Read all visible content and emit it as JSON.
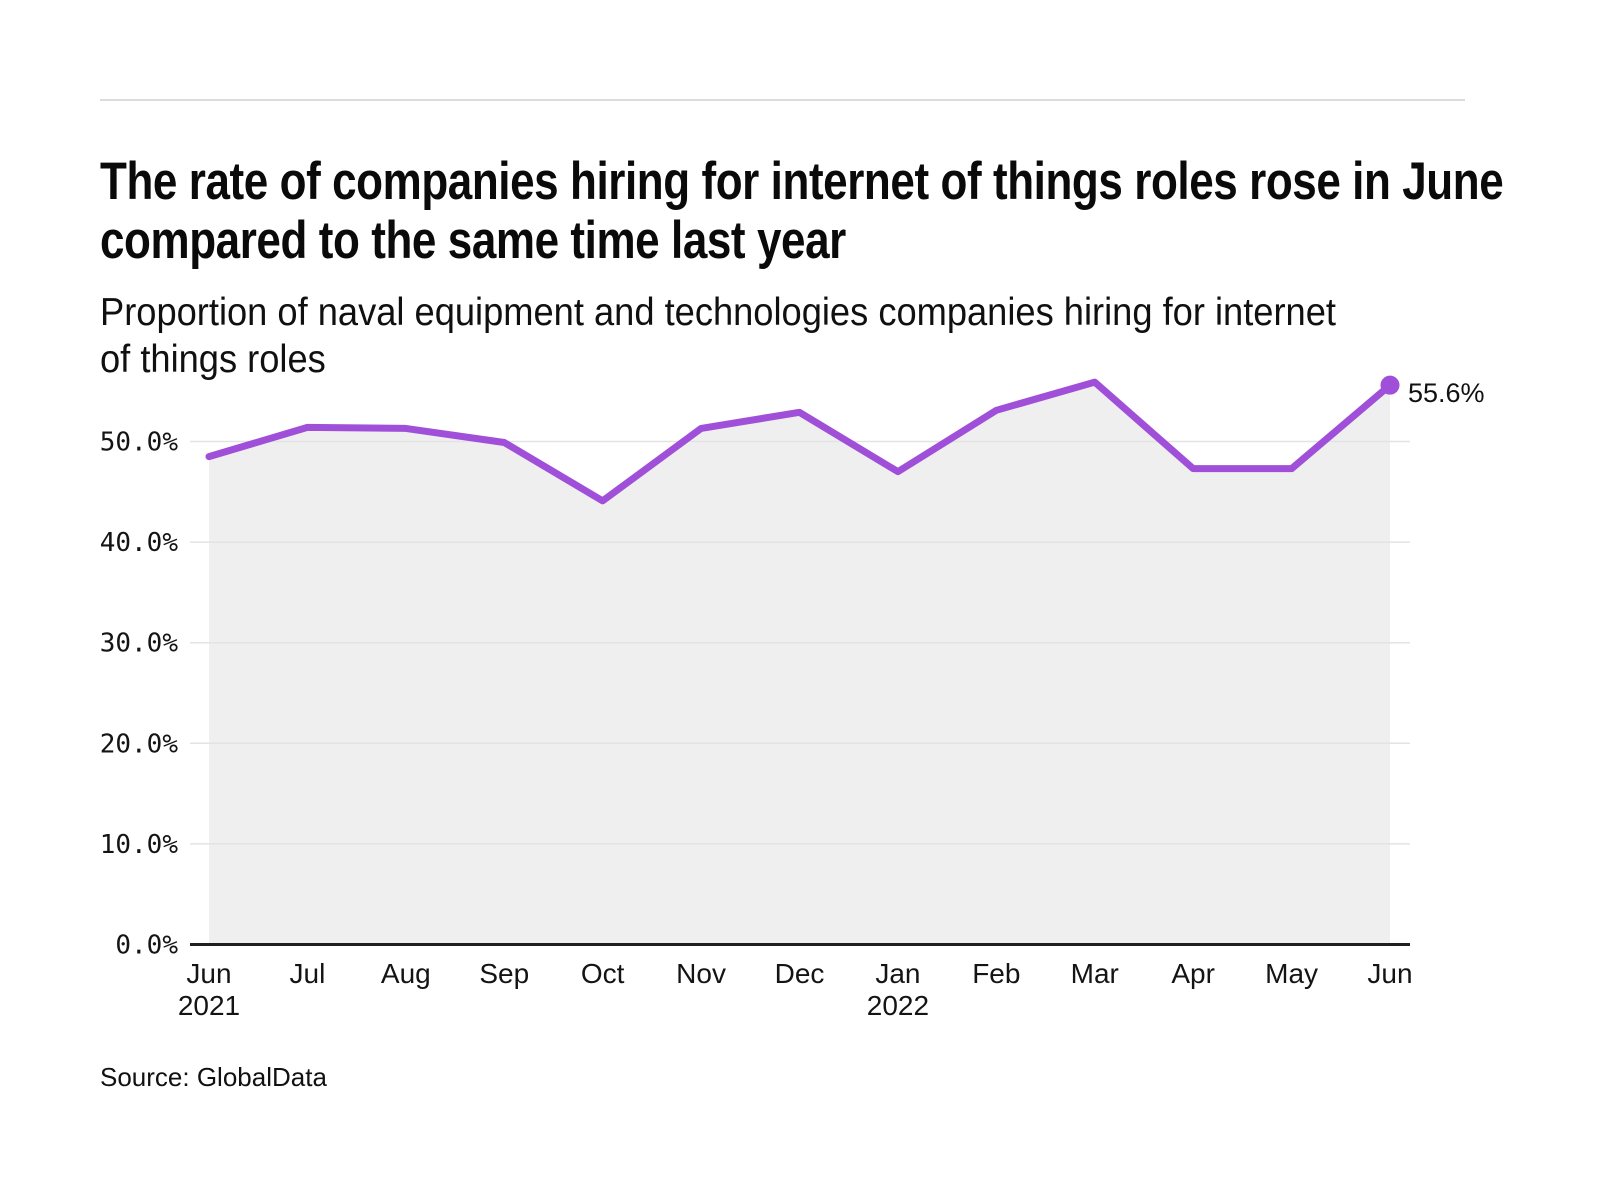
{
  "chart_data": {
    "type": "area",
    "title": "The rate of companies hiring for internet of things roles rose in June compared to the same time last year",
    "subtitle": "Proportion of naval equipment and technologies companies hiring for internet of things roles",
    "categories": [
      "Jun",
      "Jul",
      "Aug",
      "Sep",
      "Oct",
      "Nov",
      "Dec",
      "Jan",
      "Feb",
      "Mar",
      "Apr",
      "May",
      "Jun"
    ],
    "category_years": [
      "2021",
      "",
      "",
      "",
      "",
      "",
      "",
      "2022",
      "",
      "",
      "",
      "",
      ""
    ],
    "values": [
      48.5,
      51.4,
      51.3,
      49.9,
      44.1,
      51.3,
      52.9,
      47.0,
      53.1,
      55.9,
      47.3,
      47.3,
      55.6
    ],
    "unit": "%",
    "end_label": "55.6%",
    "ylim": [
      0,
      58
    ],
    "yticks": [
      0,
      10,
      20,
      30,
      40,
      50
    ],
    "ytick_labels": [
      "0.0%",
      "10.0%",
      "20.0%",
      "30.0%",
      "40.0%",
      "50.0%"
    ],
    "grid": true,
    "legend": "none",
    "line_color": "#9f4fd8",
    "marker_color": "#9f4fd8",
    "area_fill_color": "#efefef",
    "gridline_color": "#e3e3e3",
    "axis_line_color": "#1f1f1f"
  },
  "footer": {
    "source": "Source: GlobalData"
  }
}
